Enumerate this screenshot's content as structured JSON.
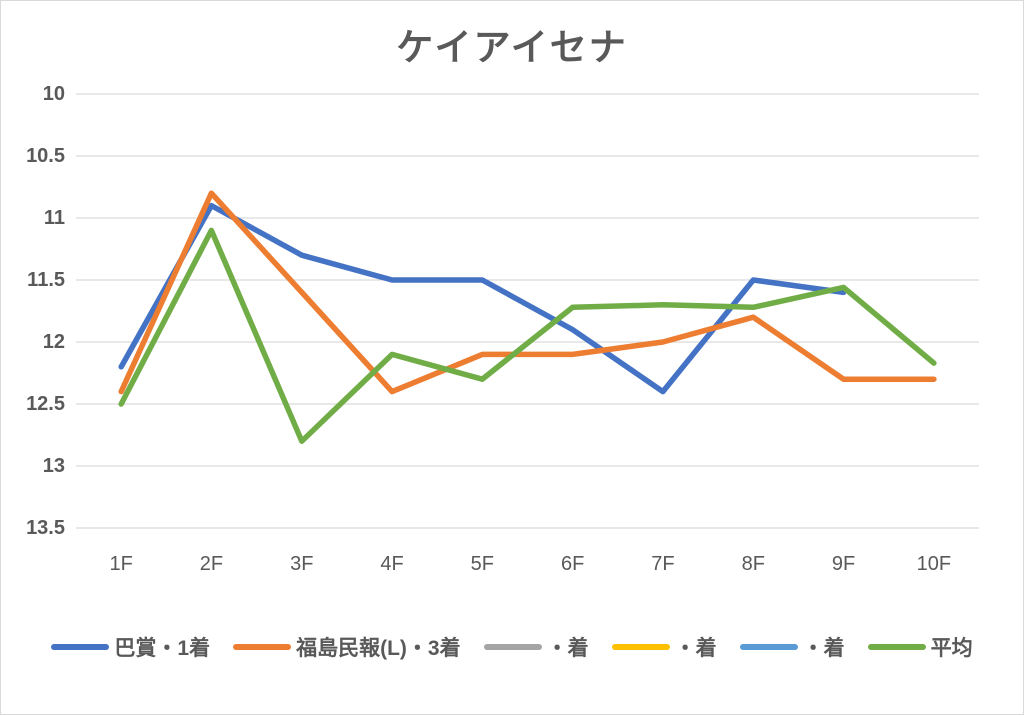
{
  "chart_data": {
    "type": "line",
    "title": "ケイアイセナ",
    "categories": [
      "1F",
      "2F",
      "3F",
      "4F",
      "5F",
      "6F",
      "7F",
      "8F",
      "9F",
      "10F"
    ],
    "xlabel": "",
    "ylabel": "",
    "y_axis": {
      "ticks": [
        10,
        10.5,
        11,
        11.5,
        12,
        12.5,
        13,
        13.5
      ],
      "min": 10,
      "max": 13.5,
      "inverted": true
    },
    "grid": true,
    "legend_position": "bottom",
    "series": [
      {
        "name": "巴賞・1着",
        "color": "#4472C4",
        "values": [
          12.2,
          10.9,
          11.3,
          11.5,
          11.5,
          11.9,
          12.4,
          11.5,
          11.6,
          null
        ]
      },
      {
        "name": "福島民報(L)・3着",
        "color": "#ED7D31",
        "values": [
          12.4,
          10.8,
          11.6,
          12.4,
          12.1,
          12.1,
          12.0,
          11.8,
          12.3,
          12.3
        ]
      },
      {
        "name": "・着",
        "color": "#A5A5A5",
        "values": []
      },
      {
        "name": "・着",
        "color": "#FFC000",
        "values": []
      },
      {
        "name": "・着",
        "color": "#5B9BD5",
        "values": []
      },
      {
        "name": "平均",
        "color": "#70AD47",
        "values": [
          12.5,
          11.1,
          12.8,
          12.1,
          12.3,
          11.72,
          11.7,
          11.72,
          11.56,
          12.17
        ]
      }
    ]
  },
  "style": {
    "grid_color": "#D9D9D9",
    "frame_color": "#D9D9D9",
    "text_color": "#595959",
    "background": "#FFFFFF",
    "line_width": 5.5
  }
}
